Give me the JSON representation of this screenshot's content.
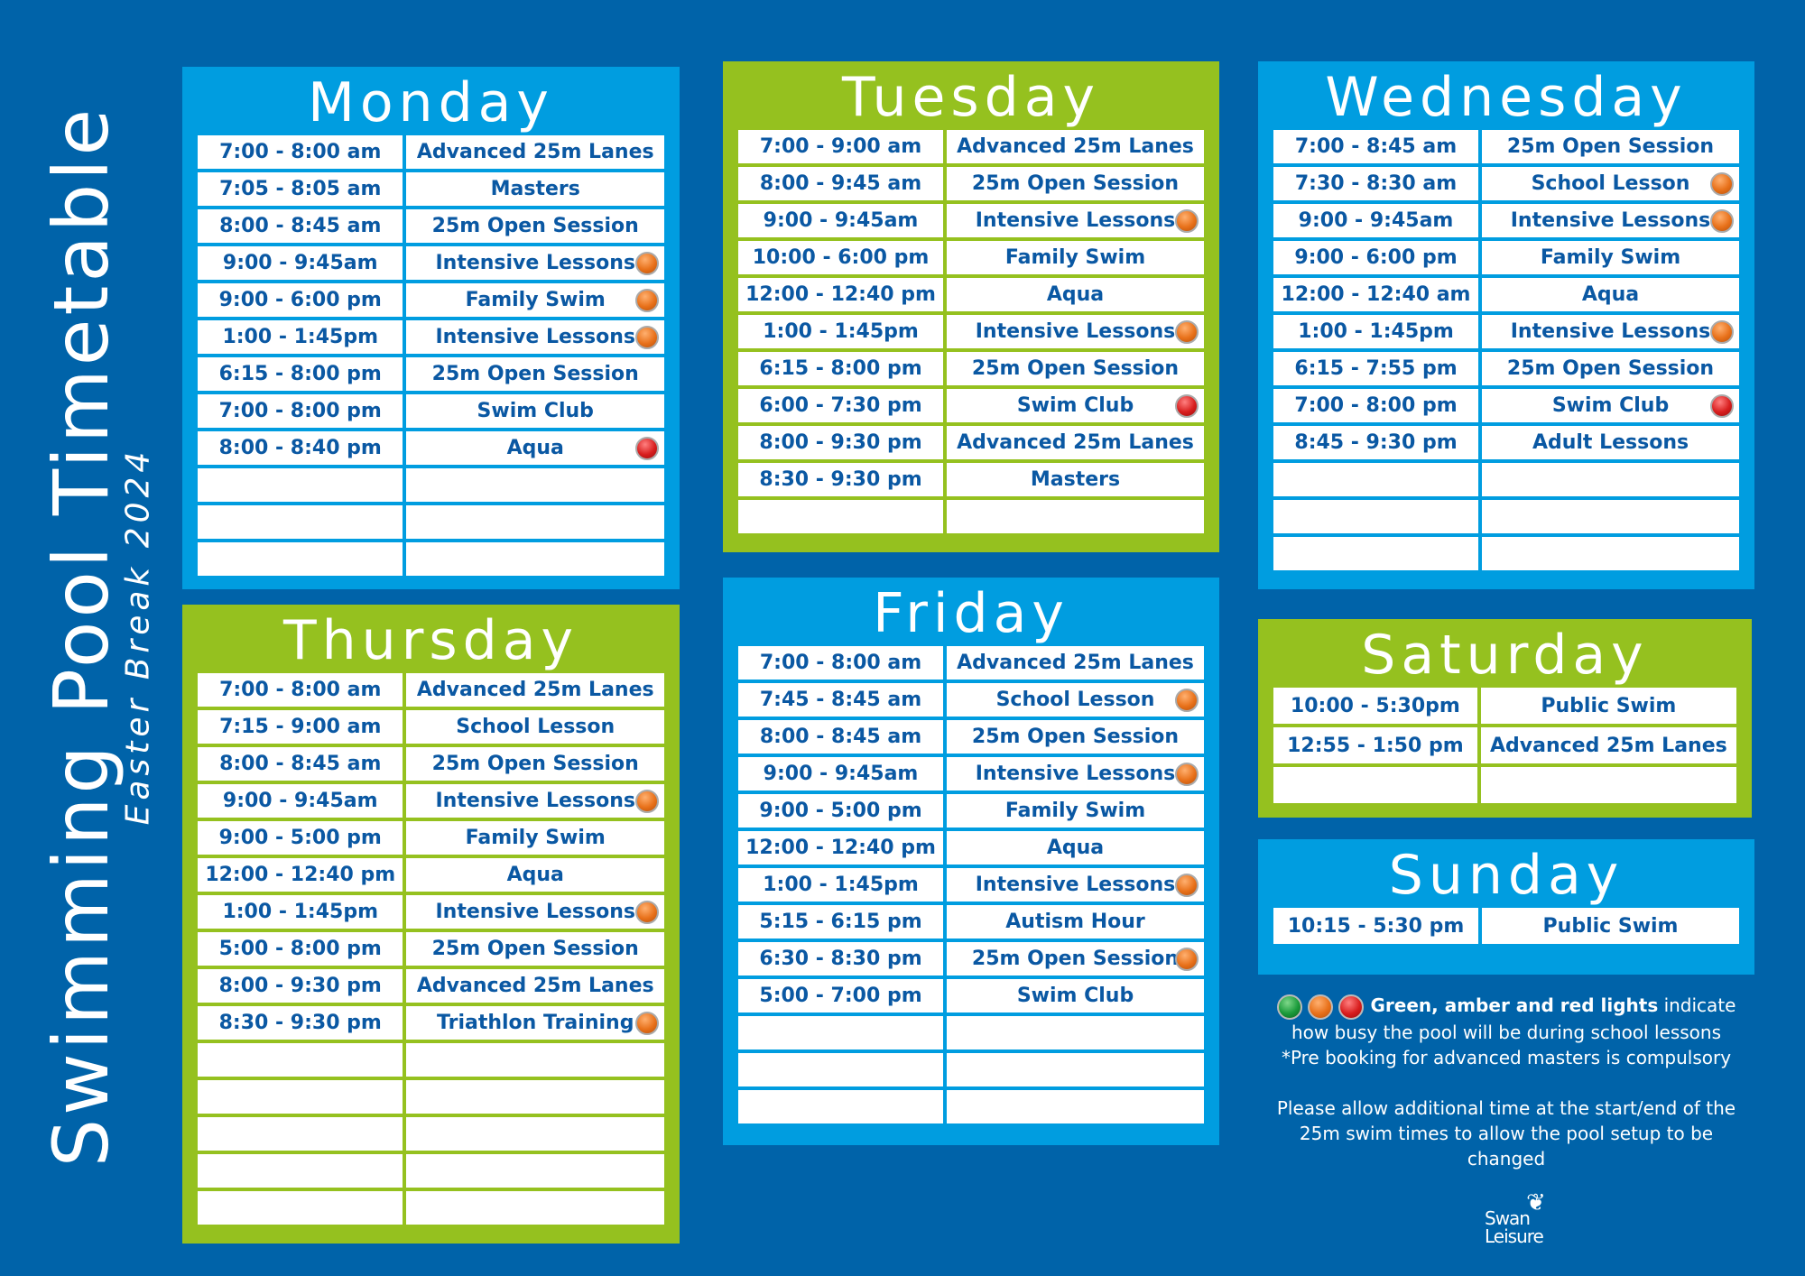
{
  "title": "Swimming Pool Timetable",
  "subtitle": "Easter Break 2024",
  "colors": {
    "background": "#0063a9",
    "panel_blue": "#009de0",
    "panel_green": "#95c11f",
    "text": "#0a58a3",
    "amber": "#e8711a",
    "red": "#d81e1e",
    "green": "#1a9a3a"
  },
  "days": {
    "monday": {
      "name": "Monday",
      "rows": [
        {
          "time": "7:00 - 8:00 am",
          "activity": "Advanced 25m Lanes",
          "light": null
        },
        {
          "time": "7:05 - 8:05 am",
          "activity": "Masters",
          "light": null
        },
        {
          "time": "8:00 - 8:45 am",
          "activity": "25m Open Session",
          "light": null
        },
        {
          "time": "9:00 - 9:45am",
          "activity": "Intensive Lessons",
          "light": "amber"
        },
        {
          "time": "9:00 - 6:00 pm",
          "activity": "Family Swim",
          "light": "amber"
        },
        {
          "time": "1:00 - 1:45pm",
          "activity": "Intensive Lessons",
          "light": "amber"
        },
        {
          "time": "6:15 - 8:00 pm",
          "activity": "25m Open Session",
          "light": null
        },
        {
          "time": "7:00 - 8:00 pm",
          "activity": "Swim Club",
          "light": null
        },
        {
          "time": "8:00 - 8:40 pm",
          "activity": "Aqua",
          "light": "red"
        },
        {
          "time": "",
          "activity": "",
          "light": null
        },
        {
          "time": "",
          "activity": "",
          "light": null
        },
        {
          "time": "",
          "activity": "",
          "light": null
        }
      ]
    },
    "tuesday": {
      "name": "Tuesday",
      "rows": [
        {
          "time": "7:00 - 9:00 am",
          "activity": "Advanced 25m Lanes",
          "light": null
        },
        {
          "time": "8:00 - 9:45 am",
          "activity": "25m Open Session",
          "light": null
        },
        {
          "time": "9:00 - 9:45am",
          "activity": "Intensive Lessons",
          "light": "amber"
        },
        {
          "time": "10:00 - 6:00 pm",
          "activity": "Family Swim",
          "light": null
        },
        {
          "time": "12:00 - 12:40 pm",
          "activity": "Aqua",
          "light": null
        },
        {
          "time": "1:00 - 1:45pm",
          "activity": "Intensive Lessons",
          "light": "amber"
        },
        {
          "time": "6:15 - 8:00 pm",
          "activity": "25m Open Session",
          "light": null
        },
        {
          "time": "6:00 - 7:30 pm",
          "activity": "Swim Club",
          "light": "red"
        },
        {
          "time": "8:00 - 9:30 pm",
          "activity": "Advanced 25m Lanes",
          "light": null
        },
        {
          "time": "8:30 - 9:30 pm",
          "activity": "Masters",
          "light": null
        },
        {
          "time": "",
          "activity": "",
          "light": null
        }
      ]
    },
    "wednesday": {
      "name": "Wednesday",
      "rows": [
        {
          "time": "7:00 - 8:45 am",
          "activity": "25m Open Session",
          "light": null
        },
        {
          "time": "7:30 - 8:30 am",
          "activity": "School Lesson",
          "light": "amber"
        },
        {
          "time": "9:00 - 9:45am",
          "activity": "Intensive Lessons",
          "light": "amber"
        },
        {
          "time": "9:00 - 6:00 pm",
          "activity": "Family Swim",
          "light": null
        },
        {
          "time": "12:00 - 12:40 am",
          "activity": "Aqua",
          "light": null
        },
        {
          "time": "1:00 - 1:45pm",
          "activity": "Intensive Lessons",
          "light": "amber"
        },
        {
          "time": "6:15 - 7:55 pm",
          "activity": "25m Open Session",
          "light": null
        },
        {
          "time": "7:00 - 8:00 pm",
          "activity": "Swim Club",
          "light": "red"
        },
        {
          "time": "8:45 - 9:30 pm",
          "activity": "Adult Lessons",
          "light": null
        },
        {
          "time": "",
          "activity": "",
          "light": null
        },
        {
          "time": "",
          "activity": "",
          "light": null
        },
        {
          "time": "",
          "activity": "",
          "light": null
        }
      ]
    },
    "thursday": {
      "name": "Thursday",
      "rows": [
        {
          "time": "7:00 - 8:00 am",
          "activity": "Advanced 25m Lanes",
          "light": null
        },
        {
          "time": "7:15 - 9:00 am",
          "activity": "School Lesson",
          "light": null
        },
        {
          "time": "8:00 - 8:45 am",
          "activity": "25m Open Session",
          "light": null
        },
        {
          "time": "9:00 - 9:45am",
          "activity": "Intensive Lessons",
          "light": "amber"
        },
        {
          "time": "9:00 - 5:00 pm",
          "activity": "Family Swim",
          "light": null
        },
        {
          "time": "12:00 - 12:40 pm",
          "activity": "Aqua",
          "light": null
        },
        {
          "time": "1:00 - 1:45pm",
          "activity": "Intensive Lessons",
          "light": "amber"
        },
        {
          "time": "5:00 - 8:00 pm",
          "activity": "25m Open Session",
          "light": null
        },
        {
          "time": "8:00 - 9:30 pm",
          "activity": "Advanced 25m Lanes",
          "light": null
        },
        {
          "time": "8:30 - 9:30 pm",
          "activity": "Triathlon Training",
          "light": "amber"
        },
        {
          "time": "",
          "activity": "",
          "light": null
        },
        {
          "time": "",
          "activity": "",
          "light": null
        },
        {
          "time": "",
          "activity": "",
          "light": null
        },
        {
          "time": "",
          "activity": "",
          "light": null
        },
        {
          "time": "",
          "activity": "",
          "light": null
        }
      ]
    },
    "friday": {
      "name": "Friday",
      "rows": [
        {
          "time": "7:00 - 8:00 am",
          "activity": "Advanced 25m Lanes",
          "light": null
        },
        {
          "time": "7:45 - 8:45 am",
          "activity": "School Lesson",
          "light": "amber"
        },
        {
          "time": "8:00 - 8:45 am",
          "activity": "25m Open Session",
          "light": null
        },
        {
          "time": "9:00 - 9:45am",
          "activity": "Intensive Lessons",
          "light": "amber"
        },
        {
          "time": "9:00 - 5:00 pm",
          "activity": "Family Swim",
          "light": null
        },
        {
          "time": "12:00 - 12:40 pm",
          "activity": "Aqua",
          "light": null
        },
        {
          "time": "1:00 - 1:45pm",
          "activity": "Intensive Lessons",
          "light": "amber"
        },
        {
          "time": "5:15 - 6:15 pm",
          "activity": "Autism Hour",
          "light": null
        },
        {
          "time": "6:30 - 8:30 pm",
          "activity": "25m Open Session",
          "light": "amber"
        },
        {
          "time": "5:00 - 7:00 pm",
          "activity": "Swim Club",
          "light": null
        },
        {
          "time": "",
          "activity": "",
          "light": null
        },
        {
          "time": "",
          "activity": "",
          "light": null
        },
        {
          "time": "",
          "activity": "",
          "light": null
        }
      ]
    },
    "saturday": {
      "name": "Saturday",
      "rows": [
        {
          "time": "10:00 - 5:30pm",
          "activity": "Public Swim",
          "light": null
        },
        {
          "time": "12:55 - 1:50 pm",
          "activity": "Advanced 25m Lanes",
          "light": null
        },
        {
          "time": "",
          "activity": "",
          "light": null
        }
      ]
    },
    "sunday": {
      "name": "Sunday",
      "rows": [
        {
          "time": "10:15 - 5:30 pm",
          "activity": "Public Swim",
          "light": null
        }
      ]
    }
  },
  "legend": {
    "lights": [
      "green",
      "amber",
      "red"
    ],
    "bold": "Green, amber and red lights",
    "text1": " indicate how busy the pool will be during school lessons",
    "text2": "*Pre booking for advanced masters is compulsory",
    "text3": "Please allow additional time at the start/end of the 25m swim times to allow the pool setup to be changed"
  },
  "logo": {
    "line1": "Swan",
    "line2": "Leisure"
  }
}
